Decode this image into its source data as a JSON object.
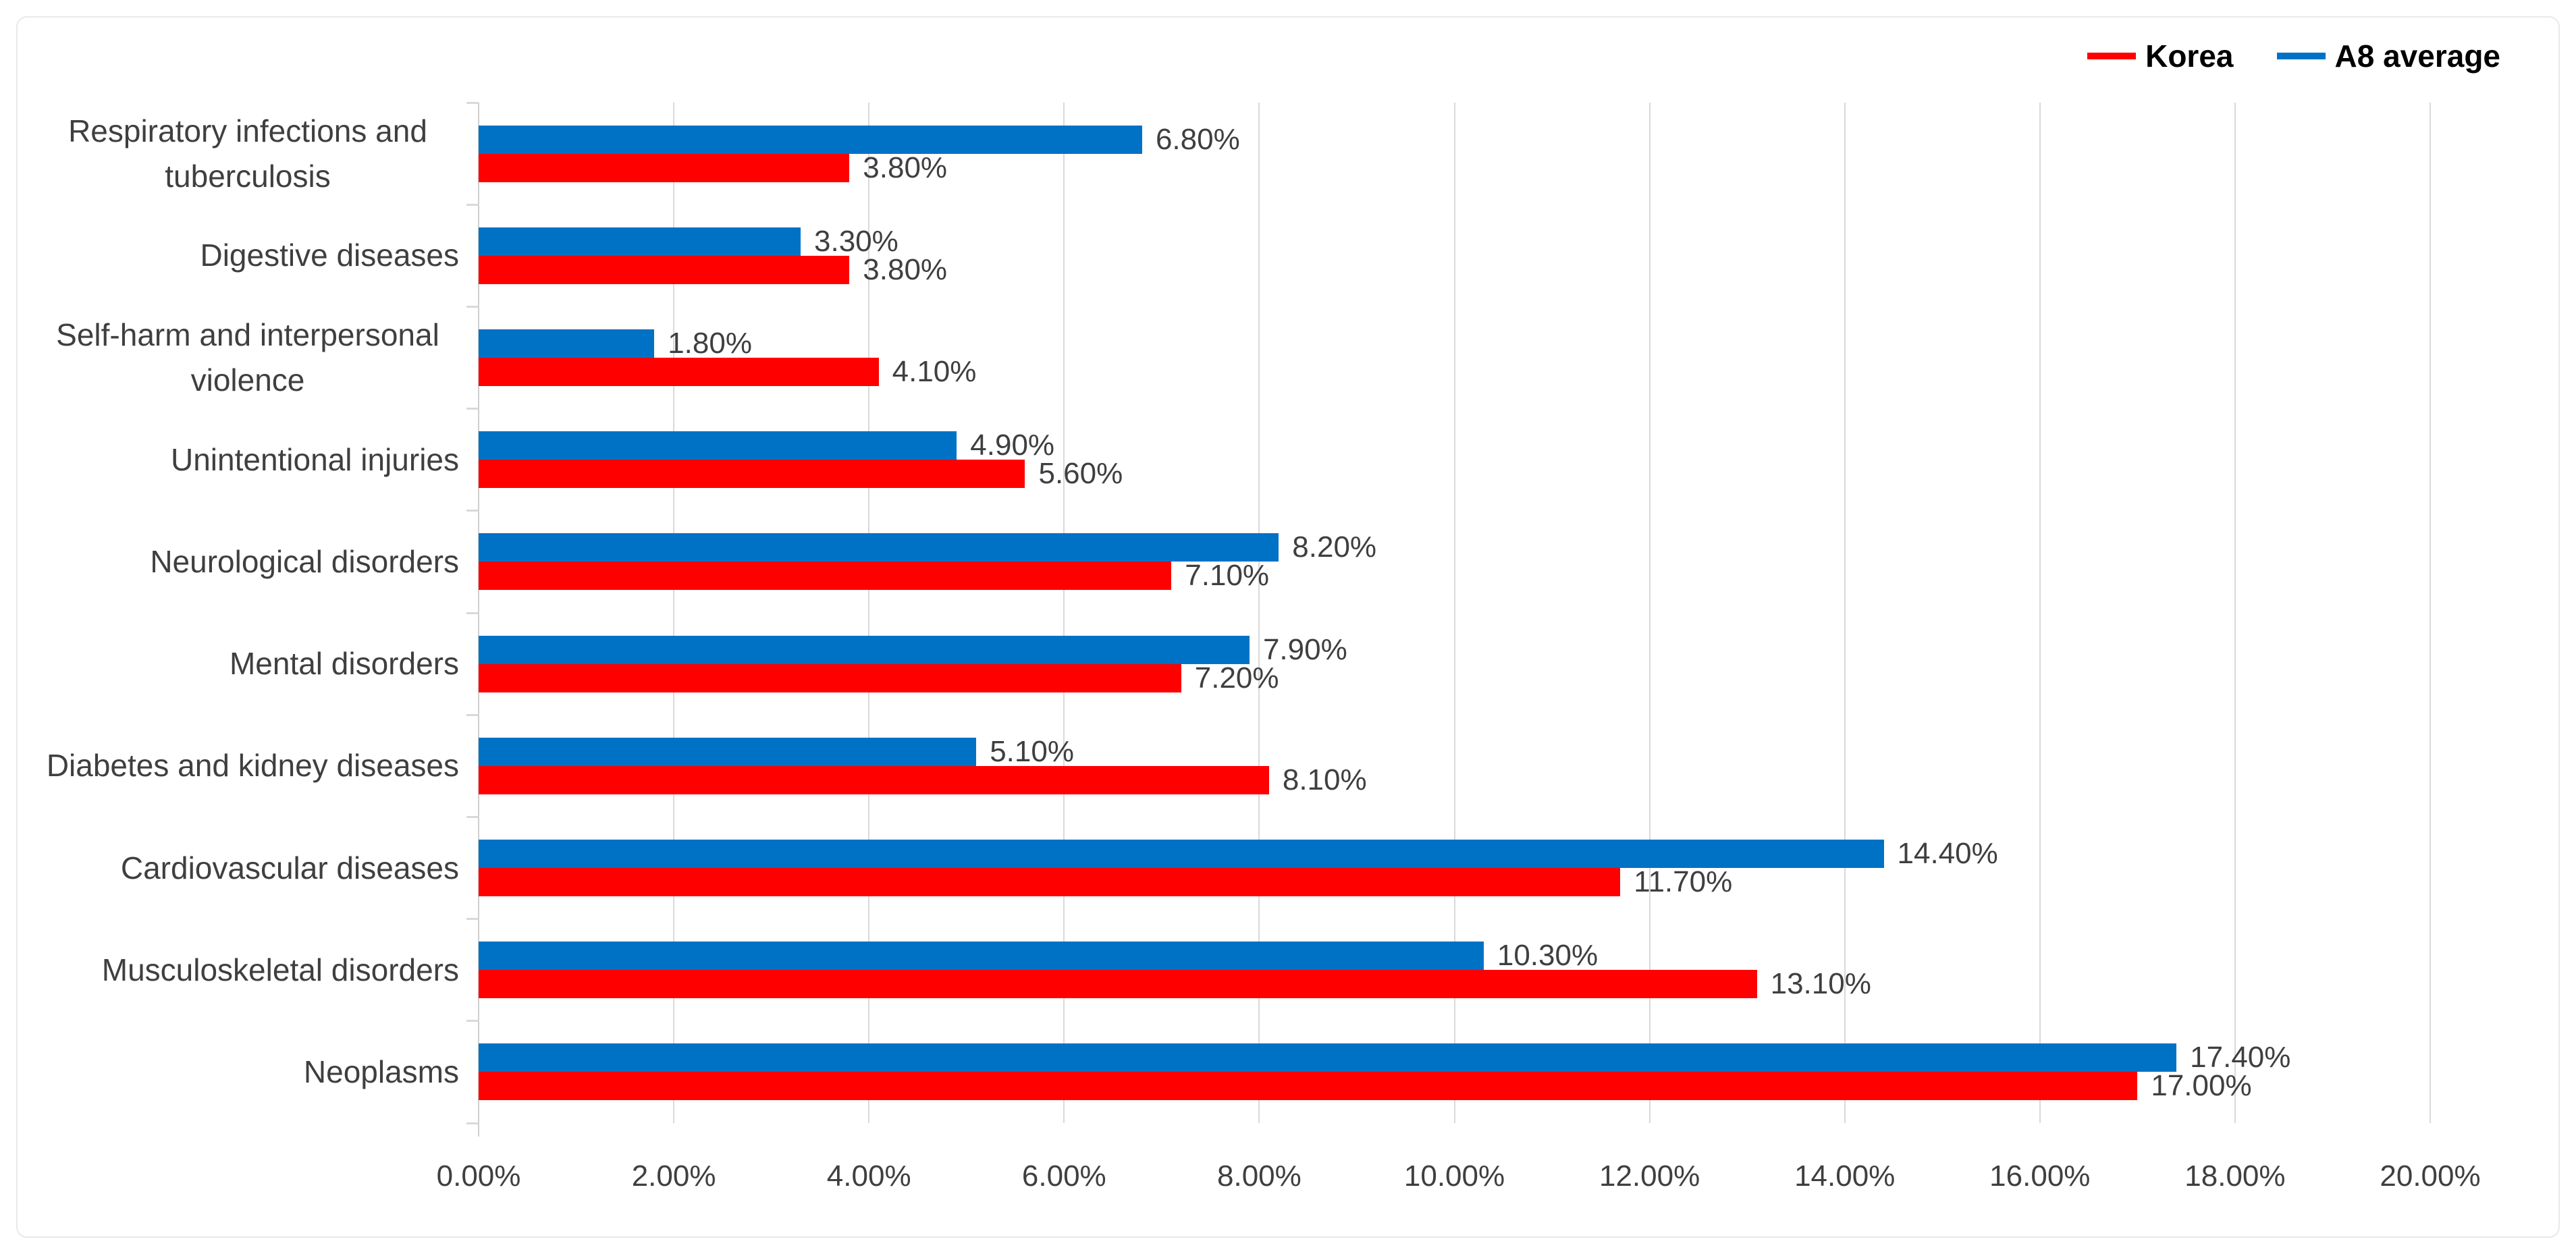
{
  "chart_data": {
    "type": "bar",
    "orientation": "horizontal",
    "title": "",
    "xlabel": "",
    "ylabel": "",
    "xlim": [
      0,
      20
    ],
    "grid": true,
    "legend_position": "top-right",
    "category_order": "top-to-bottom",
    "group_bar_order": [
      "A8 average",
      "Korea"
    ],
    "categories": [
      "Respiratory infections and tuberculosis",
      "Digestive diseases",
      "Self-harm and interpersonal violence",
      "Unintentional injuries",
      "Neurological disorders",
      "Mental disorders",
      "Diabetes and kidney diseases",
      "Cardiovascular diseases",
      "Musculoskeletal disorders",
      "Neoplasms"
    ],
    "series": [
      {
        "name": "Korea",
        "color": "#ff0000",
        "values": [
          3.8,
          3.8,
          4.1,
          5.6,
          7.1,
          7.2,
          8.1,
          11.7,
          13.1,
          17.0
        ],
        "labels": [
          "3.80%",
          "3.80%",
          "4.10%",
          "5.60%",
          "7.10%",
          "7.20%",
          "8.10%",
          "11.70%",
          "13.10%",
          "17.00%"
        ]
      },
      {
        "name": "A8 average",
        "color": "#0072c6",
        "values": [
          6.8,
          3.3,
          1.8,
          4.9,
          8.2,
          7.9,
          5.1,
          14.4,
          10.3,
          17.4
        ],
        "labels": [
          "6.80%",
          "3.30%",
          "1.80%",
          "4.90%",
          "8.20%",
          "7.90%",
          "5.10%",
          "14.40%",
          "10.30%",
          "17.40%"
        ]
      }
    ],
    "x_ticks": [
      "0.00%",
      "2.00%",
      "4.00%",
      "6.00%",
      "8.00%",
      "10.00%",
      "12.00%",
      "14.00%",
      "16.00%",
      "18.00%",
      "20.00%"
    ]
  },
  "colors": {
    "korea_red": "#ff0000",
    "a8_blue": "#0072c6",
    "gridline": "#d9d9d9",
    "card_border": "#e9e9e9",
    "label_text": "#3f3f3f",
    "legend_text": "#000000",
    "background": "#ffffff"
  }
}
